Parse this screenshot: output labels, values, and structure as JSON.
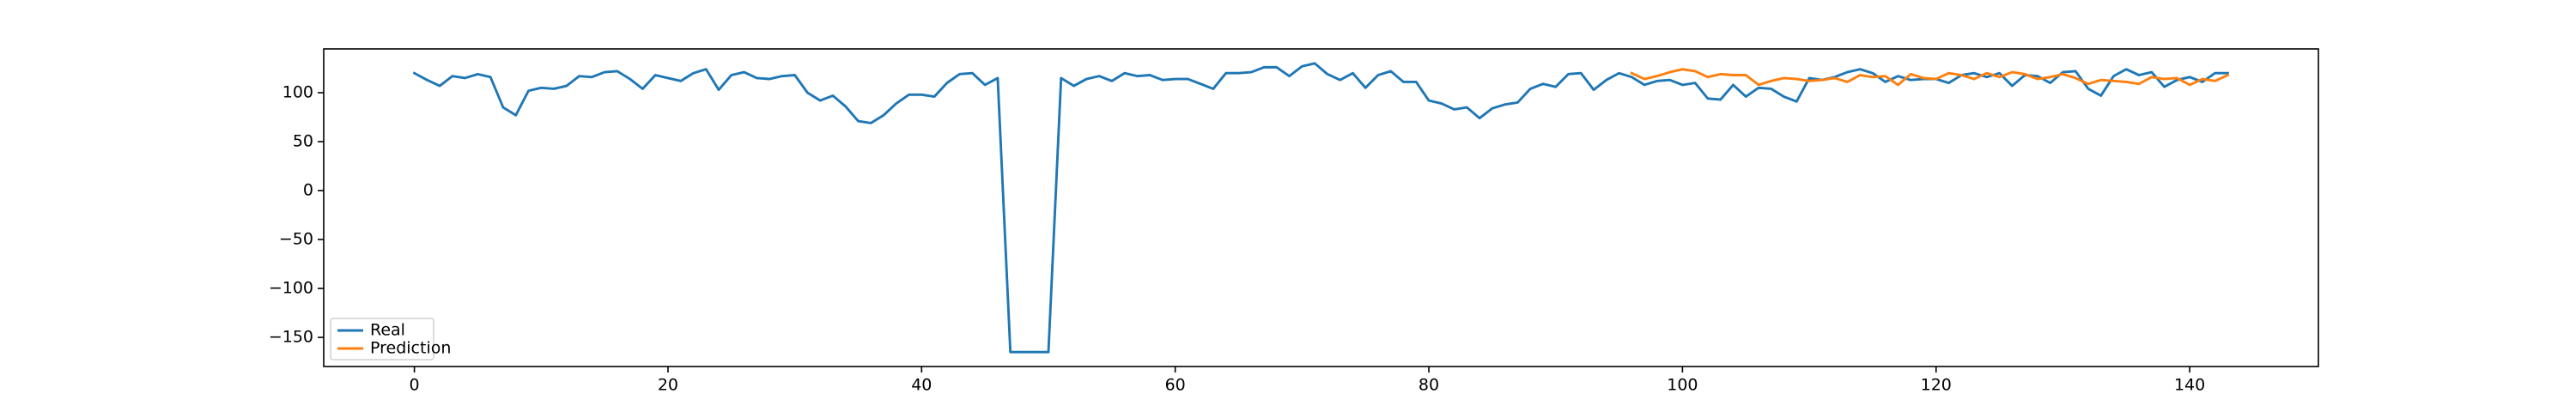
{
  "chart_data": {
    "type": "line",
    "x": [
      0,
      1,
      2,
      3,
      4,
      5,
      6,
      7,
      8,
      9,
      10,
      11,
      12,
      13,
      14,
      15,
      16,
      17,
      18,
      19,
      20,
      21,
      22,
      23,
      24,
      25,
      26,
      27,
      28,
      29,
      30,
      31,
      32,
      33,
      34,
      35,
      36,
      37,
      38,
      39,
      40,
      41,
      42,
      43,
      44,
      45,
      46,
      47,
      48,
      49,
      50,
      51,
      52,
      53,
      54,
      55,
      56,
      57,
      58,
      59,
      60,
      61,
      62,
      63,
      64,
      65,
      66,
      67,
      68,
      69,
      70,
      71,
      72,
      73,
      74,
      75,
      76,
      77,
      78,
      79,
      80,
      81,
      82,
      83,
      84,
      85,
      86,
      87,
      88,
      89,
      90,
      91,
      92,
      93,
      94,
      95,
      96,
      97,
      98,
      99,
      100,
      101,
      102,
      103,
      104,
      105,
      106,
      107,
      108,
      109,
      110,
      111,
      112,
      113,
      114,
      115,
      116,
      117,
      118,
      119,
      120,
      121,
      122,
      123,
      124,
      125,
      126,
      127,
      128,
      129,
      130,
      131,
      132,
      133,
      134,
      135,
      136,
      137,
      138,
      139,
      140,
      141,
      142,
      143
    ],
    "series": [
      {
        "name": "Real",
        "color": "#1f77b4",
        "values": [
          120,
          113,
          107,
          117,
          115,
          119,
          116,
          85,
          77,
          102,
          105,
          104,
          107,
          117,
          116,
          121,
          122,
          114,
          104,
          118,
          115,
          112,
          120,
          124,
          103,
          118,
          121,
          115,
          114,
          117,
          118,
          100,
          92,
          97,
          86,
          71,
          69,
          77,
          89,
          98,
          98,
          96,
          110,
          119,
          120,
          108,
          115,
          -165,
          -165,
          -165,
          -165,
          115,
          107,
          114,
          117,
          112,
          120,
          117,
          118,
          113,
          114,
          114,
          109,
          104,
          120,
          120,
          121,
          126,
          126,
          117,
          127,
          130,
          119,
          113,
          120,
          105,
          118,
          122,
          111,
          111,
          92,
          89,
          83,
          85,
          74,
          84,
          88,
          90,
          104,
          109,
          106,
          119,
          120,
          103,
          113,
          120,
          116,
          108,
          112,
          113,
          108,
          110,
          94,
          93,
          108,
          96,
          105,
          104,
          96,
          91,
          115,
          113,
          116,
          121,
          124,
          120,
          111,
          117,
          113,
          114,
          114,
          110,
          118,
          120,
          116,
          120,
          107,
          118,
          117,
          110,
          121,
          122,
          104,
          97,
          117,
          124,
          118,
          121,
          106,
          113,
          116,
          111,
          120,
          120
        ]
      },
      {
        "name": "Prediction",
        "color": "#ff7f0e",
        "values": [
          null,
          null,
          null,
          null,
          null,
          null,
          null,
          null,
          null,
          null,
          null,
          null,
          null,
          null,
          null,
          null,
          null,
          null,
          null,
          null,
          null,
          null,
          null,
          null,
          null,
          null,
          null,
          null,
          null,
          null,
          null,
          null,
          null,
          null,
          null,
          null,
          null,
          null,
          null,
          null,
          null,
          null,
          null,
          null,
          null,
          null,
          null,
          null,
          null,
          null,
          null,
          null,
          null,
          null,
          null,
          null,
          null,
          null,
          null,
          null,
          null,
          null,
          null,
          null,
          null,
          null,
          null,
          null,
          null,
          null,
          null,
          null,
          null,
          null,
          null,
          null,
          null,
          null,
          null,
          null,
          null,
          null,
          null,
          null,
          null,
          null,
          null,
          null,
          null,
          null,
          null,
          null,
          null,
          null,
          null,
          null,
          120,
          114,
          117,
          121,
          124,
          122,
          116,
          119,
          118,
          118,
          108,
          112,
          115,
          114,
          112,
          113,
          115,
          111,
          118,
          116,
          117,
          108,
          119,
          115,
          114,
          120,
          118,
          114,
          120,
          116,
          121,
          119,
          114,
          116,
          119,
          115,
          109,
          113,
          112,
          111,
          109,
          116,
          114,
          115,
          108,
          114,
          112,
          118
        ]
      }
    ],
    "xlim": [
      -7.15,
      150.15
    ],
    "ylim": [
      -179.75,
      144.75
    ],
    "xticks": [
      0,
      20,
      40,
      60,
      80,
      100,
      120,
      140
    ],
    "yticks": [
      {
        "value": -150,
        "label": "−150"
      },
      {
        "value": -100,
        "label": "−100"
      },
      {
        "value": -50,
        "label": "−50"
      },
      0,
      50,
      100
    ],
    "legend": "lower left",
    "grid": false
  }
}
